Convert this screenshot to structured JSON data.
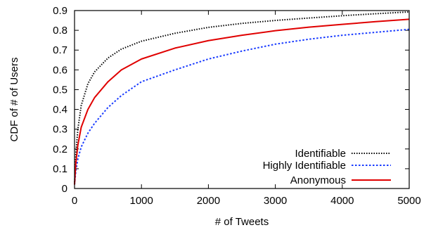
{
  "chart_data": {
    "type": "line",
    "title": "",
    "xlabel": "# of Tweets",
    "ylabel": "CDF of # of Users",
    "xlim": [
      0,
      5000
    ],
    "ylim": [
      0,
      0.9
    ],
    "x_ticks": [
      0,
      1000,
      2000,
      3000,
      4000,
      5000
    ],
    "y_ticks": [
      0,
      0.1,
      0.2,
      0.3,
      0.4,
      0.5,
      0.6,
      0.7,
      0.8,
      0.9
    ],
    "x_tick_labels": [
      "0",
      "1000",
      "2000",
      "3000",
      "4000",
      "5000"
    ],
    "y_tick_labels": [
      "0",
      "0.1",
      "0.2",
      "0.3",
      "0.4",
      "0.5",
      "0.6",
      "0.7",
      "0.8",
      "0.9"
    ],
    "grid": false,
    "legend_position": "bottom-right",
    "series": [
      {
        "name": "Identifiable",
        "color": "#000000",
        "style": "dotted",
        "x": [
          0,
          20,
          50,
          100,
          200,
          300,
          500,
          700,
          1000,
          1500,
          2000,
          2500,
          3000,
          3500,
          4000,
          4500,
          5000
        ],
        "y": [
          0.02,
          0.18,
          0.3,
          0.42,
          0.53,
          0.59,
          0.66,
          0.705,
          0.745,
          0.785,
          0.815,
          0.835,
          0.85,
          0.862,
          0.874,
          0.884,
          0.893
        ]
      },
      {
        "name": "Highly Identifiable",
        "color": "#1a3cff",
        "style": "dotted",
        "x": [
          0,
          20,
          50,
          100,
          200,
          300,
          500,
          700,
          1000,
          1500,
          2000,
          2500,
          3000,
          3500,
          4000,
          4500,
          5000
        ],
        "y": [
          0.02,
          0.09,
          0.15,
          0.21,
          0.28,
          0.33,
          0.41,
          0.47,
          0.54,
          0.6,
          0.655,
          0.695,
          0.73,
          0.755,
          0.775,
          0.79,
          0.805
        ]
      },
      {
        "name": "Anonymous",
        "color": "#e00000",
        "style": "solid",
        "x": [
          0,
          20,
          50,
          100,
          200,
          300,
          500,
          700,
          1000,
          1500,
          2000,
          2500,
          3000,
          3500,
          4000,
          4500,
          5000
        ],
        "y": [
          0.02,
          0.13,
          0.22,
          0.31,
          0.4,
          0.46,
          0.54,
          0.6,
          0.655,
          0.71,
          0.748,
          0.775,
          0.798,
          0.816,
          0.83,
          0.844,
          0.856
        ]
      }
    ]
  }
}
